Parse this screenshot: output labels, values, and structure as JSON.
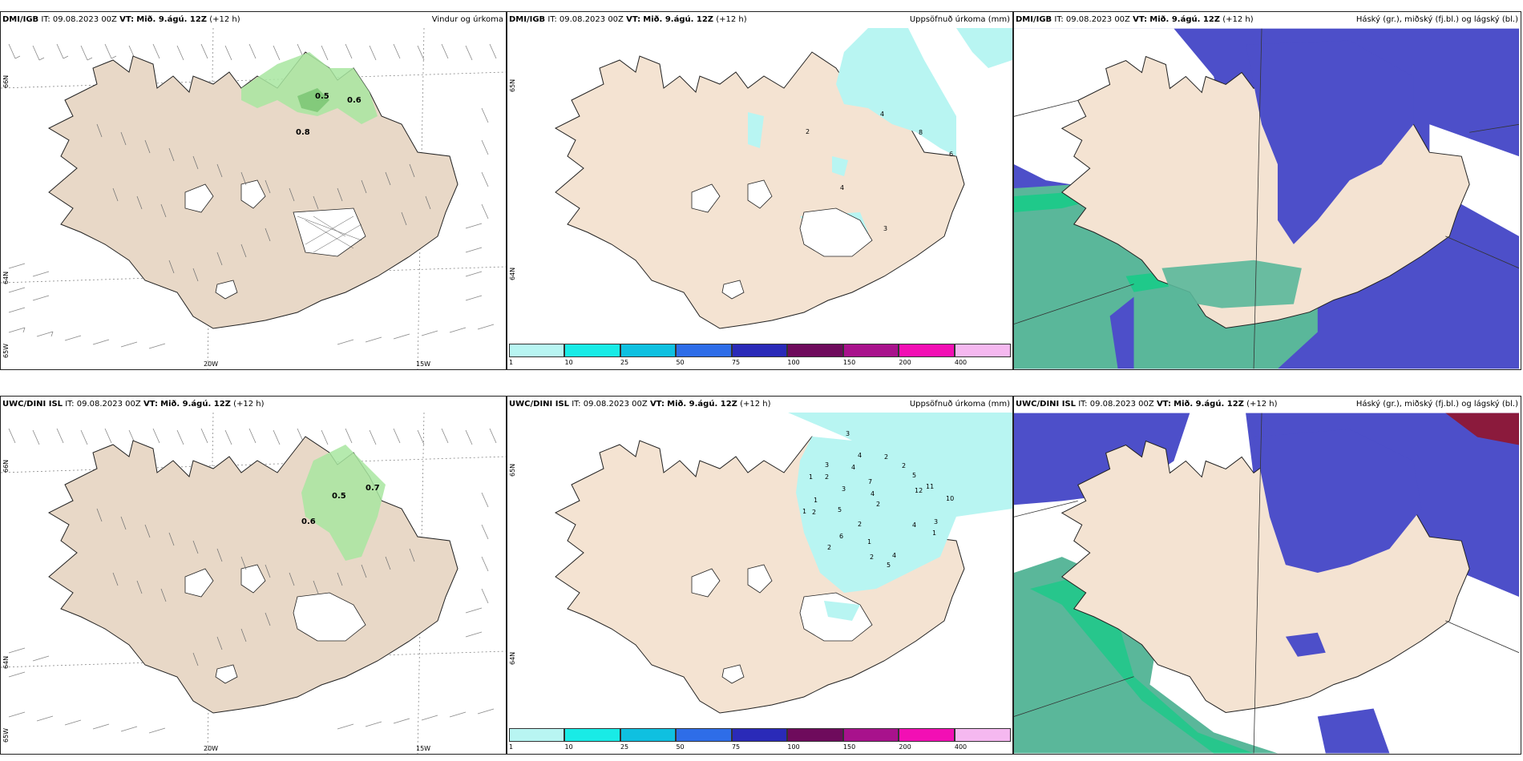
{
  "colors": {
    "land": "#f4e3d2",
    "land_wind": "#e8d8c7",
    "precip_green": "#a8e6a0",
    "cyan_light": "#b8f5f2",
    "cloud_high": "#4d4fc9",
    "cloud_low": "#5ab79a",
    "cloud_mid": "#1fc98a"
  },
  "panels": [
    {
      "id": "dmi-wind",
      "source": "DMI/IGB",
      "it": "IT: 09.08.2023 00Z",
      "vt_label": "VT:",
      "vt": "Mið. 9.ágú. 12Z",
      "lead": "(+12 h)",
      "title": "Vindur og úrkoma",
      "lat_labels": [
        "66N",
        "64N",
        "65W"
      ],
      "lon_labels": [
        "20W",
        "15W"
      ],
      "values": [
        "0.5",
        "0.6",
        "0.8"
      ]
    },
    {
      "id": "dmi-precip",
      "source": "DMI/IGB",
      "it": "IT: 09.08.2023 00Z",
      "vt_label": "VT:",
      "vt": "Mið. 9.ágú. 12Z",
      "lead": "(+12 h)",
      "title": "Uppsöfnuð úrkoma (mm)",
      "lat_labels": [
        "65N",
        "64N"
      ],
      "values": [
        "2",
        "4",
        "8",
        "6",
        "4",
        "3"
      ]
    },
    {
      "id": "dmi-cloud",
      "source": "DMI/IGB",
      "it": "IT: 09.08.2023 00Z",
      "vt_label": "VT:",
      "vt": "Mið. 9.ágú. 12Z",
      "lead": "(+12 h)",
      "title": "Háský (gr.), miðský (fj.bl.) og lágský (bl.)"
    },
    {
      "id": "uwc-wind",
      "source": "UWC/DINI ISL",
      "it": "IT: 09.08.2023 00Z",
      "vt_label": "VT:",
      "vt": "Mið. 9.ágú. 12Z",
      "lead": "(+12 h)",
      "title": "",
      "lat_labels": [
        "66N",
        "64N",
        "65W"
      ],
      "lon_labels": [
        "20W",
        "15W"
      ],
      "values": [
        "0.5",
        "0.7",
        "0.6"
      ]
    },
    {
      "id": "uwc-precip",
      "source": "UWC/DINI ISL",
      "it": "IT: 09.08.2023 00Z",
      "vt_label": "VT:",
      "vt": "Mið. 9.ágú. 12Z",
      "lead": "(+12 h)",
      "title": "Uppsöfnuð úrkoma (mm)",
      "lat_labels": [
        "65N",
        "64N"
      ],
      "values": [
        "3",
        "3",
        "4",
        "2",
        "2",
        "2",
        "4",
        "1",
        "7",
        "3",
        "5",
        "4",
        "12",
        "11",
        "10",
        "1",
        "1",
        "2",
        "5",
        "2",
        "2",
        "3",
        "6",
        "4",
        "2",
        "1",
        "1",
        "2",
        "4",
        "5"
      ]
    },
    {
      "id": "uwc-cloud",
      "source": "UWC/DINI ISL",
      "it": "IT: 09.08.2023 00Z",
      "vt_label": "VT:",
      "vt": "Mið. 9.ágú. 12Z",
      "lead": "(+12 h)",
      "title": "Háský (gr.), miðský (fj.bl.) og lágský (bl.)"
    }
  ],
  "colorbar": {
    "colors": [
      "#b8f5f2",
      "#19ebe6",
      "#0fc0e0",
      "#2e6de8",
      "#2a2ab8",
      "#6e0b5c",
      "#a8128c",
      "#f20fb4",
      "#f5b8f0"
    ],
    "ticks": [
      "1",
      "10",
      "25",
      "50",
      "75",
      "100",
      "150",
      "200",
      "400"
    ]
  }
}
